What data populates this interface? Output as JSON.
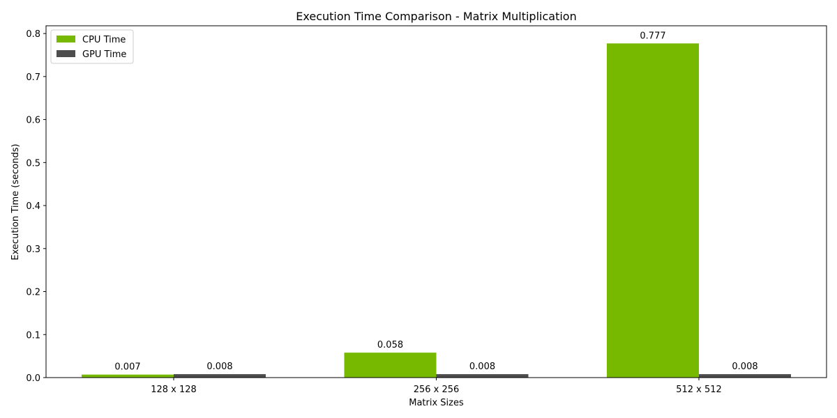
{
  "chart_data": {
    "type": "bar",
    "title": "Execution Time Comparison - Matrix Multiplication",
    "xlabel": "Matrix Sizes",
    "ylabel": "Execution Time (seconds)",
    "categories": [
      "128 x 128",
      "256 x 256",
      "512 x 512"
    ],
    "series": [
      {
        "name": "CPU Time",
        "values": [
          0.007,
          0.058,
          0.777
        ],
        "labels": [
          "0.007",
          "0.058",
          "0.777"
        ],
        "color": "#76b900"
      },
      {
        "name": "GPU Time",
        "values": [
          0.008,
          0.008,
          0.008
        ],
        "labels": [
          "0.008",
          "0.008",
          "0.008"
        ],
        "color": "#4d4d4d"
      }
    ],
    "ylim": [
      0,
      0.818
    ],
    "yticks": [
      0.0,
      0.1,
      0.2,
      0.3,
      0.4,
      0.5,
      0.6,
      0.7,
      0.8
    ],
    "ytick_labels": [
      "0.0",
      "0.1",
      "0.2",
      "0.3",
      "0.4",
      "0.5",
      "0.6",
      "0.7",
      "0.8"
    ],
    "grid": false,
    "legend_position": "top-left"
  }
}
